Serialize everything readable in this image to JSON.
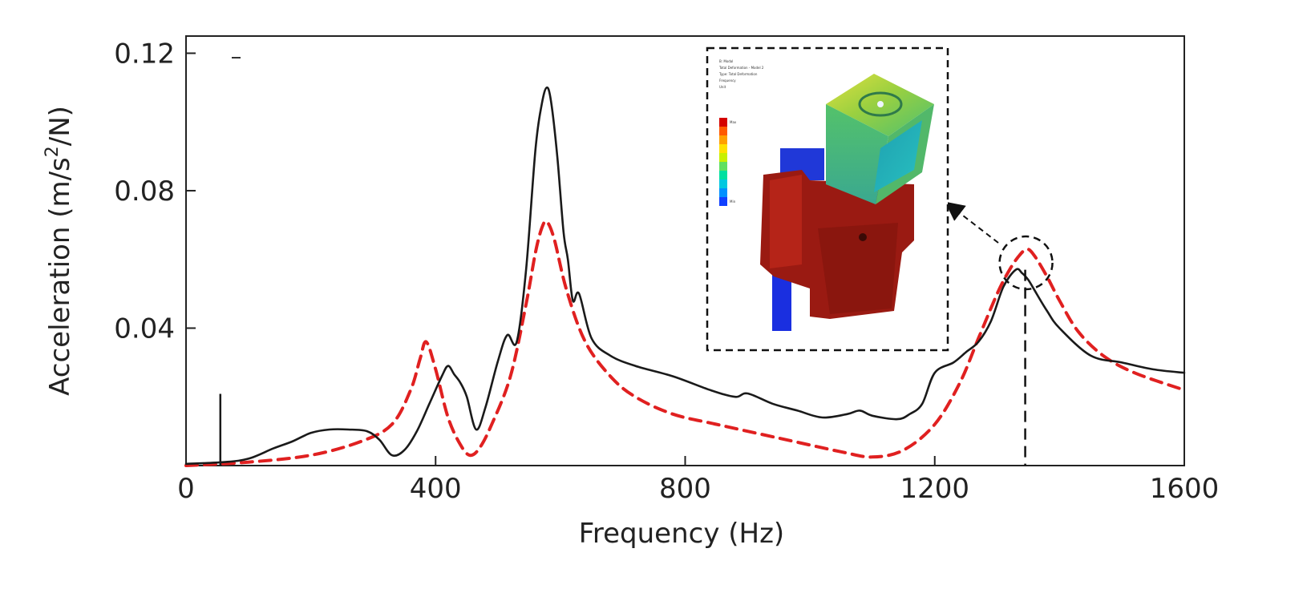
{
  "chart_data": {
    "type": "line",
    "title": "",
    "xlabel": "Frequency (Hz)",
    "ylabel_main": "Acceleration (m/s",
    "ylabel_sup": "2",
    "ylabel_tail": "/N)",
    "xlim": [
      0,
      1600
    ],
    "ylim": [
      0,
      0.125
    ],
    "xticks": [
      0,
      400,
      800,
      1200,
      1600
    ],
    "xtick_labels": [
      "0",
      "400",
      "800",
      "1200",
      "1600"
    ],
    "yticks": [
      0.04,
      0.08,
      0.12
    ],
    "ytick_labels": [
      "0.04",
      "0.08",
      "0.12"
    ],
    "grid": false,
    "colors": {
      "measured": "#1a1a1a",
      "simulated": "#e02020",
      "frame": "#222222"
    },
    "series": [
      {
        "style": "solid",
        "color": "#1a1a1a",
        "x": [
          0,
          60,
          100,
          140,
          170,
          200,
          230,
          260,
          290,
          310,
          330,
          350,
          370,
          390,
          410,
          420,
          430,
          440,
          450,
          465,
          480,
          500,
          515,
          530,
          545,
          560,
          570,
          578,
          585,
          595,
          605,
          612,
          620,
          630,
          650,
          680,
          720,
          780,
          840,
          880,
          900,
          940,
          980,
          1020,
          1060,
          1080,
          1100,
          1140,
          1160,
          1180,
          1200,
          1230,
          1250,
          1270,
          1290,
          1310,
          1330,
          1340,
          1350,
          1360,
          1380,
          1400,
          1450,
          1500,
          1550,
          1600
        ],
        "y": [
          0.0005,
          0.001,
          0.002,
          0.005,
          0.007,
          0.0095,
          0.0105,
          0.0105,
          0.01,
          0.0075,
          0.003,
          0.0045,
          0.01,
          0.018,
          0.026,
          0.029,
          0.0265,
          0.024,
          0.02,
          0.0105,
          0.017,
          0.0305,
          0.038,
          0.036,
          0.057,
          0.092,
          0.105,
          0.11,
          0.106,
          0.09,
          0.068,
          0.06,
          0.048,
          0.05,
          0.037,
          0.032,
          0.029,
          0.026,
          0.022,
          0.02,
          0.021,
          0.018,
          0.016,
          0.014,
          0.015,
          0.016,
          0.0145,
          0.0135,
          0.015,
          0.018,
          0.027,
          0.03,
          0.033,
          0.036,
          0.042,
          0.052,
          0.057,
          0.056,
          0.054,
          0.051,
          0.045,
          0.04,
          0.032,
          0.03,
          0.028,
          0.027
        ]
      },
      {
        "style": "dashed",
        "color": "#e02020",
        "x": [
          0,
          100,
          200,
          280,
          330,
          360,
          375,
          385,
          400,
          420,
          440,
          455,
          470,
          490,
          520,
          545,
          560,
          570,
          578,
          590,
          610,
          640,
          680,
          720,
          780,
          850,
          950,
          1050,
          1100,
          1150,
          1200,
          1240,
          1270,
          1300,
          1320,
          1335,
          1348,
          1360,
          1380,
          1400,
          1430,
          1470,
          1520,
          1600
        ],
        "y": [
          0,
          0.001,
          0.003,
          0.007,
          0.012,
          0.022,
          0.031,
          0.036,
          0.028,
          0.014,
          0.006,
          0.003,
          0.005,
          0.012,
          0.026,
          0.047,
          0.062,
          0.069,
          0.071,
          0.066,
          0.051,
          0.036,
          0.026,
          0.02,
          0.015,
          0.012,
          0.008,
          0.004,
          0.0025,
          0.0045,
          0.012,
          0.024,
          0.037,
          0.05,
          0.057,
          0.061,
          0.063,
          0.061,
          0.055,
          0.048,
          0.039,
          0.032,
          0.027,
          0.022
        ]
      }
    ],
    "annotations": {
      "peak_marker_x": 1345,
      "spike_x": 55,
      "spike_y": 0.012
    }
  },
  "inset": {
    "title_lines": [
      "B: Modal",
      "Total Deformation - Model 2",
      "Type: Total Deformation",
      "Frequency",
      "Unit"
    ],
    "legend_values": [
      "Max",
      "",
      "",
      "",
      "",
      "",
      "",
      "",
      "",
      "Min"
    ],
    "legend_colors": [
      "#d40000",
      "#ff5a00",
      "#ffa000",
      "#ffe000",
      "#c8f000",
      "#60e060",
      "#00e0a0",
      "#00c8e0",
      "#0090ff",
      "#1040ff"
    ]
  }
}
